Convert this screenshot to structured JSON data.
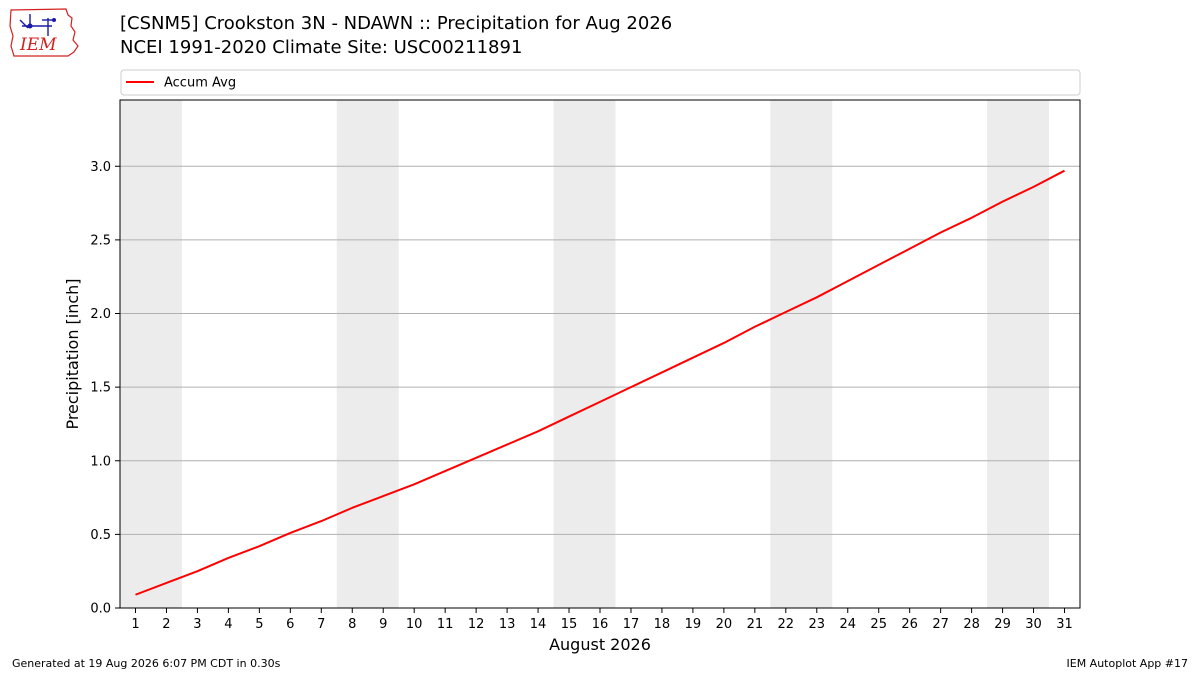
{
  "header": {
    "title_line1": "[CSNM5] Crookston 3N - NDAWN :: Precipitation for Aug 2026",
    "title_line2": "NCEI 1991-2020 Climate Site: USC00211891"
  },
  "logo": {
    "text": "IEM",
    "color": "#d42020",
    "accent": "#1a1aa6"
  },
  "footer": {
    "left": "Generated at 19 Aug 2026 6:07 PM CDT in 0.30s",
    "right": "IEM Autoplot App #17"
  },
  "chart_data": {
    "type": "line",
    "xlabel": "August 2026",
    "ylabel": "Precipitation [inch]",
    "xlim": [
      0.5,
      31.5
    ],
    "ylim": [
      0,
      3.45
    ],
    "x_ticks": [
      1,
      2,
      3,
      4,
      5,
      6,
      7,
      8,
      9,
      10,
      11,
      12,
      13,
      14,
      15,
      16,
      17,
      18,
      19,
      20,
      21,
      22,
      23,
      24,
      25,
      26,
      27,
      28,
      29,
      30,
      31
    ],
    "y_ticks": [
      0.0,
      0.5,
      1.0,
      1.5,
      2.0,
      2.5,
      3.0
    ],
    "y_tick_labels": [
      "0.0",
      "0.5",
      "1.0",
      "1.5",
      "2.0",
      "2.5",
      "3.0"
    ],
    "grid": "horizontal",
    "legend_position": "top",
    "weekend_shading": [
      [
        1,
        2
      ],
      [
        8,
        9
      ],
      [
        15,
        16
      ],
      [
        22,
        23
      ],
      [
        29,
        30
      ]
    ],
    "shade_color": "#ececec",
    "series": [
      {
        "name": "Accum Avg",
        "color": "#ff0000",
        "x": [
          1,
          2,
          3,
          4,
          5,
          6,
          7,
          8,
          9,
          10,
          11,
          12,
          13,
          14,
          15,
          16,
          17,
          18,
          19,
          20,
          21,
          22,
          23,
          24,
          25,
          26,
          27,
          28,
          29,
          30,
          31
        ],
        "values": [
          0.09,
          0.17,
          0.25,
          0.34,
          0.42,
          0.51,
          0.59,
          0.68,
          0.76,
          0.84,
          0.93,
          1.02,
          1.11,
          1.2,
          1.3,
          1.4,
          1.5,
          1.6,
          1.7,
          1.8,
          1.91,
          2.01,
          2.11,
          2.22,
          2.33,
          2.44,
          2.55,
          2.65,
          2.76,
          2.86,
          2.97
        ]
      }
    ]
  }
}
